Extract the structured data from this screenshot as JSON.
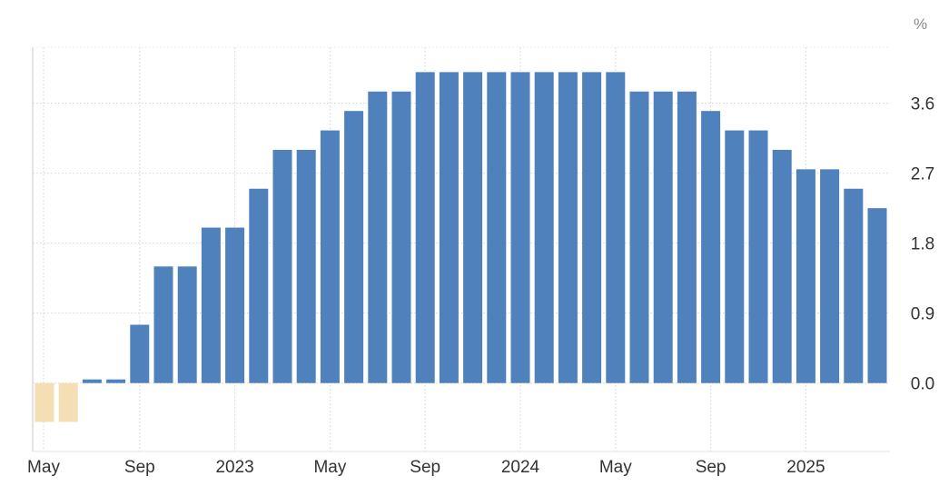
{
  "chart_data": {
    "type": "bar",
    "unit_label": "%",
    "categories": [
      "May 2022",
      "Jun 2022",
      "Jul 2022",
      "Aug 2022",
      "Sep 2022",
      "Oct 2022",
      "Nov 2022",
      "Dec 2022",
      "Jan 2023",
      "Feb 2023",
      "Mar 2023",
      "Apr 2023",
      "May 2023",
      "Jun 2023",
      "Jul 2023",
      "Aug 2023",
      "Sep 2023",
      "Oct 2023",
      "Nov 2023",
      "Dec 2023",
      "Jan 2024",
      "Feb 2024",
      "Mar 2024",
      "Apr 2024",
      "May 2024",
      "Jun 2024",
      "Jul 2024",
      "Aug 2024",
      "Sep 2024",
      "Oct 2024",
      "Nov 2024",
      "Dec 2024",
      "Jan 2025",
      "Feb 2025",
      "Mar 2025",
      "Apr 2025"
    ],
    "values": [
      -0.5,
      -0.5,
      0,
      0,
      0.75,
      1.5,
      1.5,
      2.0,
      2.0,
      2.5,
      3.0,
      3.0,
      3.25,
      3.5,
      3.75,
      3.75,
      4.0,
      4.0,
      4.0,
      4.0,
      4.0,
      4.0,
      4.0,
      4.0,
      4.0,
      3.75,
      3.75,
      3.75,
      3.5,
      3.25,
      3.25,
      3.0,
      2.75,
      2.75,
      2.5,
      2.25
    ],
    "y_ticks": [
      "0.0",
      "0.9",
      "1.8",
      "2.7",
      "3.6"
    ],
    "x_tick_labels": [
      {
        "label": "May",
        "index": 0
      },
      {
        "label": "Sep",
        "index": 4
      },
      {
        "label": "2023",
        "index": 8
      },
      {
        "label": "May",
        "index": 12
      },
      {
        "label": "Sep",
        "index": 16
      },
      {
        "label": "2024",
        "index": 20
      },
      {
        "label": "May",
        "index": 24
      },
      {
        "label": "Sep",
        "index": 28
      },
      {
        "label": "2025",
        "index": 32
      }
    ],
    "ylim": [
      -0.88,
      4.32
    ],
    "y_axis_position": "right",
    "grid": true,
    "colors": {
      "positive": "#4f81bd",
      "negative": "#f5deb3"
    }
  }
}
